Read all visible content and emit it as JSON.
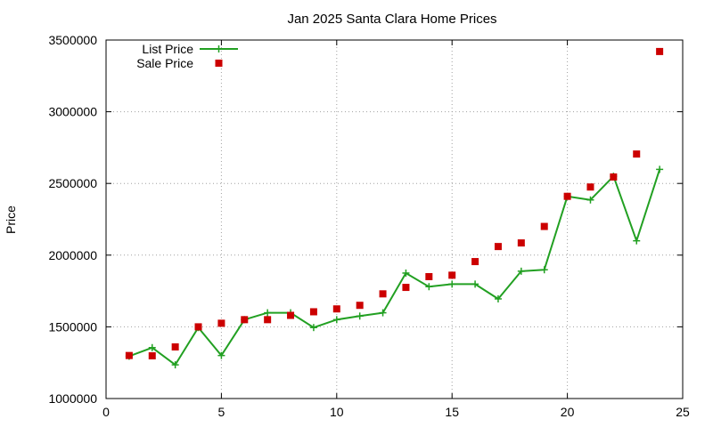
{
  "chart_data": {
    "type": "line",
    "title": "Jan 2025 Santa Clara Home Prices",
    "xlabel": "",
    "ylabel": "Price",
    "xlim": [
      0,
      25
    ],
    "ylim": [
      1000000,
      3500000
    ],
    "xticks": [
      0,
      5,
      10,
      15,
      20,
      25
    ],
    "yticks": [
      1000000,
      1500000,
      2000000,
      2500000,
      3000000,
      3500000
    ],
    "grid": true,
    "legend_position": "top-left",
    "series": [
      {
        "name": "List Price",
        "style": "line+cross",
        "color": "#22a022",
        "x": [
          1,
          2,
          3,
          4,
          5,
          6,
          7,
          8,
          9,
          10,
          11,
          12,
          13,
          14,
          15,
          16,
          17,
          18,
          19,
          20,
          21,
          22,
          23,
          24
        ],
        "y": [
          1295000,
          1355000,
          1235000,
          1495000,
          1300000,
          1550000,
          1598000,
          1598000,
          1495000,
          1550000,
          1575000,
          1598000,
          1875000,
          1780000,
          1798000,
          1798000,
          1695000,
          1888000,
          1898000,
          2410000,
          2385000,
          2550000,
          2100000,
          2598000
        ]
      },
      {
        "name": "Sale Price",
        "style": "square",
        "color": "#cc0000",
        "x": [
          1,
          2,
          3,
          4,
          5,
          6,
          7,
          8,
          9,
          10,
          11,
          12,
          13,
          14,
          15,
          16,
          17,
          18,
          19,
          20,
          21,
          22,
          23,
          24
        ],
        "y": [
          1300000,
          1298000,
          1360000,
          1500000,
          1525000,
          1550000,
          1550000,
          1580000,
          1605000,
          1625000,
          1650000,
          1730000,
          1775000,
          1850000,
          1860000,
          1955000,
          2060000,
          2085000,
          2200000,
          2410000,
          2475000,
          2545000,
          2705000,
          3420000
        ]
      }
    ]
  }
}
